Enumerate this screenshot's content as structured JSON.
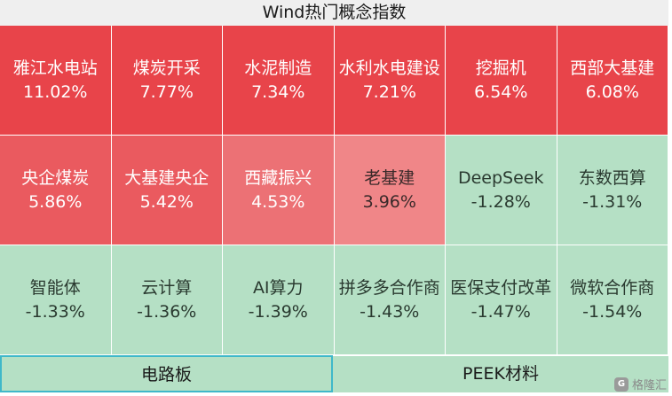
{
  "title": "Wind热门概念指数",
  "tiles": [
    {
      "name": "雅江水电站",
      "pct": "11.02%",
      "tone": "up-strong"
    },
    {
      "name": "煤炭开采",
      "pct": "7.77%",
      "tone": "up-strong"
    },
    {
      "name": "水泥制造",
      "pct": "7.34%",
      "tone": "up-strong"
    },
    {
      "name": "水利水电建设",
      "pct": "7.21%",
      "tone": "up-strong"
    },
    {
      "name": "挖掘机",
      "pct": "6.54%",
      "tone": "up-strong"
    },
    {
      "name": "西部大基建",
      "pct": "6.08%",
      "tone": "up-strong"
    },
    {
      "name": "央企煤炭",
      "pct": "5.86%",
      "tone": "up-mid"
    },
    {
      "name": "大基建央企",
      "pct": "5.42%",
      "tone": "up-mid"
    },
    {
      "name": "西藏振兴",
      "pct": "4.53%",
      "tone": "up-weak"
    },
    {
      "name": "老基建",
      "pct": "3.96%",
      "tone": "up-light"
    },
    {
      "name": "DeepSeek",
      "pct": "-1.28%",
      "tone": "down"
    },
    {
      "name": "东数西算",
      "pct": "-1.31%",
      "tone": "down"
    },
    {
      "name": "智能体",
      "pct": "-1.33%",
      "tone": "down"
    },
    {
      "name": "云计算",
      "pct": "-1.36%",
      "tone": "down"
    },
    {
      "name": "AI算力",
      "pct": "-1.39%",
      "tone": "down"
    },
    {
      "name": "拼多多合作商",
      "pct": "-1.43%",
      "tone": "down"
    },
    {
      "name": "医保支付改革",
      "pct": "-1.47%",
      "tone": "down"
    },
    {
      "name": "微软合作商",
      "pct": "-1.54%",
      "tone": "down"
    }
  ],
  "bottom_tabs": [
    {
      "label": "电路板",
      "active": true
    },
    {
      "label": "PEEK材料",
      "active": false
    }
  ],
  "watermark": {
    "icon": "gelonghui-logo-icon",
    "text": "格隆汇"
  },
  "colors": {
    "up_strong": "#e8444a",
    "up_mid": "#ea5a5f",
    "up_weak": "#ec7175",
    "up_light": "#f08688",
    "down": "#b5e0c5",
    "active_border": "#3fb8c9"
  }
}
